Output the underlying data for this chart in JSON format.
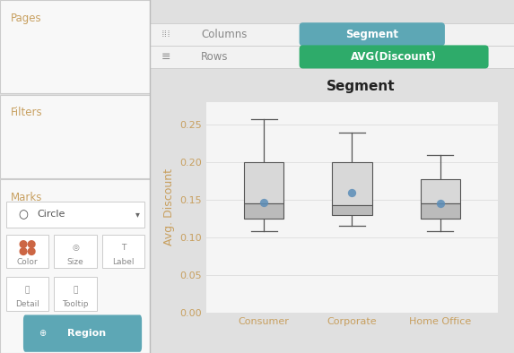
{
  "title": "Segment",
  "ylabel": "Avg. Discount",
  "categories": [
    "Consumer",
    "Corporate",
    "Home Office"
  ],
  "boxes": [
    {
      "whisker_low": 0.108,
      "q1": 0.125,
      "median": 0.145,
      "q3": 0.2,
      "whisker_high": 0.258,
      "mean": 0.147
    },
    {
      "whisker_low": 0.115,
      "q1": 0.13,
      "median": 0.143,
      "q3": 0.2,
      "whisker_high": 0.24,
      "mean": 0.16
    },
    {
      "whisker_low": 0.108,
      "q1": 0.125,
      "median": 0.145,
      "q3": 0.178,
      "whisker_high": 0.21,
      "mean": 0.145
    }
  ],
  "ylim": [
    0.0,
    0.28
  ],
  "yticks": [
    0.0,
    0.05,
    0.1,
    0.15,
    0.2,
    0.25
  ],
  "box_facecolor_top": "#d8d8d8",
  "box_facecolor_bottom": "#bbbbbb",
  "box_edgecolor": "#555555",
  "whisker_color": "#555555",
  "mean_color": "#5b8db8",
  "mean_dot_size": 45,
  "box_width": 0.45,
  "title_fontsize": 11,
  "axis_label_fontsize": 9,
  "tick_fontsize": 8,
  "tick_color": "#c8a060",
  "axis_label_color": "#c8a060",
  "title_color": "#222222",
  "chart_bg": "#f5f5f5",
  "left_panel_bg": "#f2f2f2",
  "right_panel_bg": "#f5f5f5",
  "segment_pill_color": "#5da7b5",
  "avgdiscount_pill_color": "#2eab6a",
  "region_pill_color": "#5da7b5",
  "pages_label": "Pages",
  "filters_label": "Filters",
  "marks_label": "Marks",
  "circle_label": "Circle",
  "color_label": "Color",
  "size_label": "Size",
  "label_label": "Label",
  "detail_label": "Detail",
  "tooltip_label": "Tooltip",
  "region_label": "⊕ Region",
  "columns_label": "Columns",
  "rows_label": "Rows",
  "segment_pill_text": "Segment",
  "avgdiscount_pill_text": "AVG(Discount)"
}
